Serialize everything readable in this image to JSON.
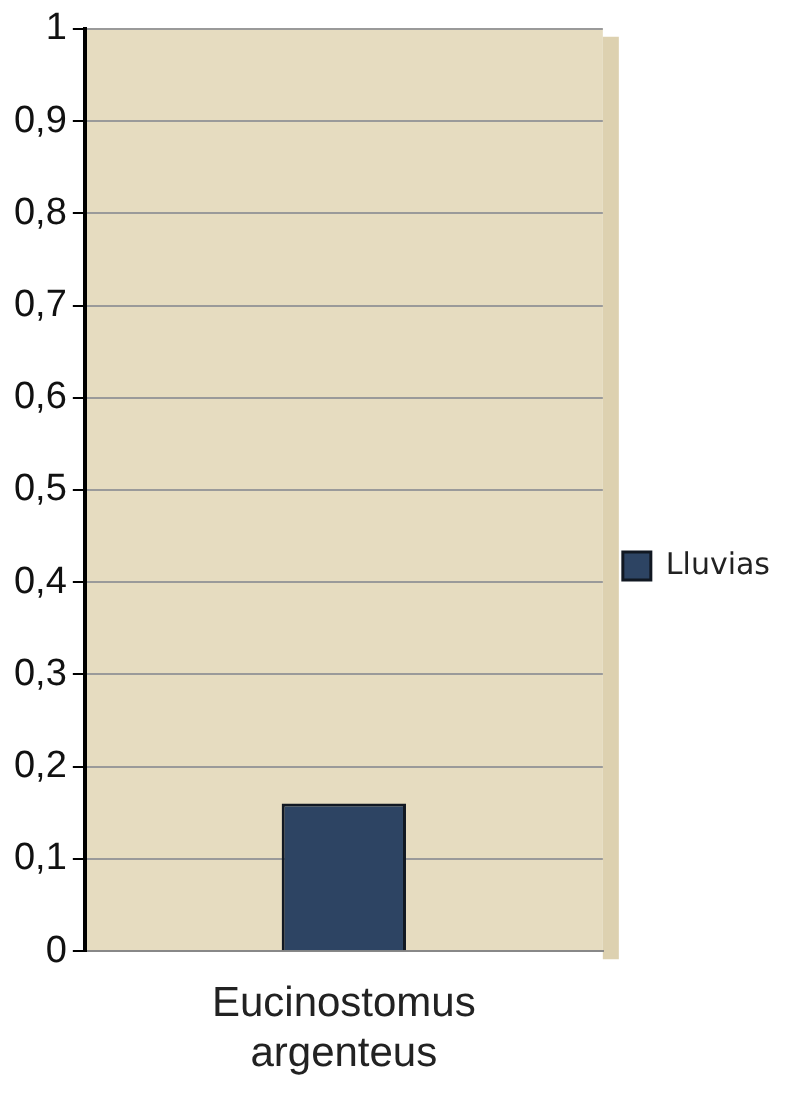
{
  "chart_data": {
    "type": "bar",
    "categories": [
      "Eucinostomus argenteus"
    ],
    "series": [
      {
        "name": "Lluvias",
        "color": "#2d4463",
        "values": [
          0.16
        ]
      }
    ],
    "ylim": [
      0,
      1
    ],
    "yticks": [
      {
        "value": 0,
        "label": "0"
      },
      {
        "value": 0.1,
        "label": "0,1"
      },
      {
        "value": 0.2,
        "label": "0,2"
      },
      {
        "value": 0.3,
        "label": "0,3"
      },
      {
        "value": 0.4,
        "label": "0,4"
      },
      {
        "value": 0.5,
        "label": "0,5"
      },
      {
        "value": 0.6,
        "label": "0,6"
      },
      {
        "value": 0.7,
        "label": "0,7"
      },
      {
        "value": 0.8,
        "label": "0,8"
      },
      {
        "value": 0.9,
        "label": "0,9"
      },
      {
        "value": 1,
        "label": "1"
      }
    ],
    "grid": "y",
    "legend": "right"
  }
}
